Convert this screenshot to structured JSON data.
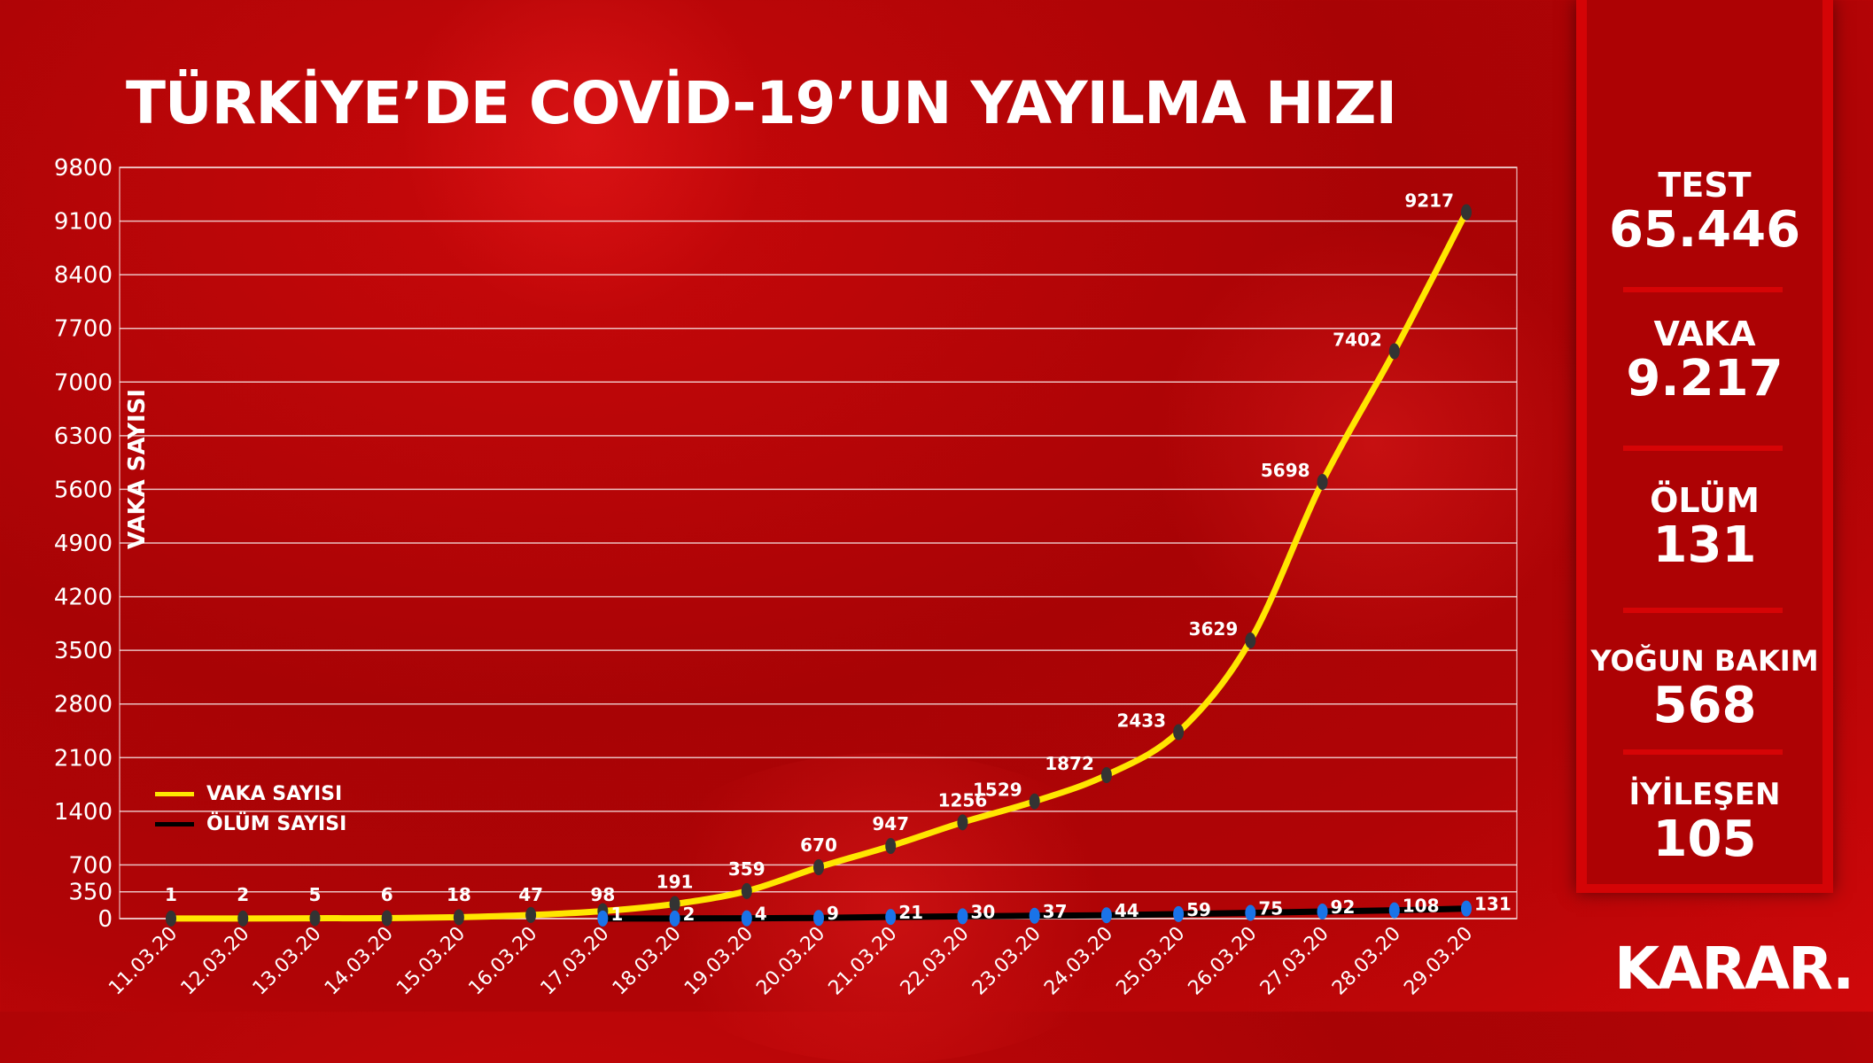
{
  "title": "TÜRKİYE’DE COVİD-19’UN YAYILMA HIZI",
  "chart_data": {
    "type": "line",
    "title": "TÜRKİYE’DE COVİD-19’UN YAYILMA HIZI",
    "ylabel": "VAKA SAYISI",
    "xlabel": "",
    "ylim": [
      0,
      9800
    ],
    "yticks": [
      0,
      350,
      700,
      1400,
      2100,
      2800,
      3500,
      4200,
      4900,
      5600,
      6300,
      7000,
      7700,
      8400,
      9100,
      9800
    ],
    "grid": true,
    "legend": "bottom-left",
    "categories": [
      "11.03.20",
      "12.03.20",
      "13.03.20",
      "14.03.20",
      "15.03.20",
      "16.03.20",
      "17.03.20",
      "18.03.20",
      "19.03.20",
      "20.03.20",
      "21.03.20",
      "22.03.20",
      "23.03.20",
      "24.03.20",
      "25.03.20",
      "26.03.20",
      "27.03.20",
      "28.03.20",
      "29.03.20"
    ],
    "series": [
      {
        "name": "VAKA SAYISI",
        "color": "#ffe600",
        "marker_color": "#333333",
        "values": [
          1,
          2,
          5,
          6,
          18,
          47,
          98,
          191,
          359,
          670,
          947,
          1256,
          1529,
          1872,
          2433,
          3629,
          5698,
          7402,
          9217
        ]
      },
      {
        "name": "ÖLÜM SAYISI",
        "color": "#000000",
        "marker_color": "#1a73e8",
        "values": [
          null,
          null,
          null,
          null,
          null,
          null,
          1,
          2,
          4,
          9,
          21,
          30,
          37,
          44,
          59,
          75,
          92,
          108,
          131
        ]
      }
    ]
  },
  "stats": [
    {
      "label": "TEST",
      "value": "65.446"
    },
    {
      "label": "VAKA",
      "value": "9.217"
    },
    {
      "label": "ÖLÜM",
      "value": "131"
    },
    {
      "label": "YOĞUN BAKIM",
      "value": "568"
    },
    {
      "label": "İYİLEŞEN",
      "value": "105"
    }
  ],
  "logo": "KARAR.",
  "colors": {
    "background": "#ad0204",
    "panel": "#d40406",
    "cases": "#ffe600",
    "deaths": "#000000",
    "death_marker": "#1a73e8"
  }
}
